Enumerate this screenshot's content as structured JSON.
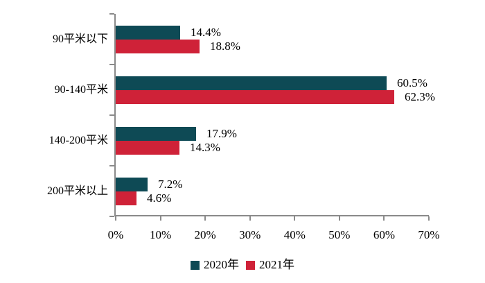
{
  "chart_data": {
    "type": "bar",
    "orientation": "horizontal",
    "title": "",
    "categories": [
      "90平米以下",
      "90-140平米",
      "140-200平米",
      "200平米以上"
    ],
    "series": [
      {
        "name": "2020年",
        "color": "#0E4A55",
        "values": [
          14.4,
          60.5,
          17.9,
          7.2
        ]
      },
      {
        "name": "2021年",
        "color": "#CF2238",
        "values": [
          18.8,
          62.3,
          14.3,
          4.6
        ]
      }
    ],
    "value_suffix": "%",
    "xlim": [
      0,
      70
    ],
    "x_tick_step": 10,
    "x_tick_labels": [
      "0%",
      "10%",
      "20%",
      "30%",
      "40%",
      "50%",
      "60%",
      "70%"
    ],
    "grid": "off",
    "legend_position": "bottom",
    "axis_color": "#8a8a8a",
    "label_color": "#000000"
  }
}
